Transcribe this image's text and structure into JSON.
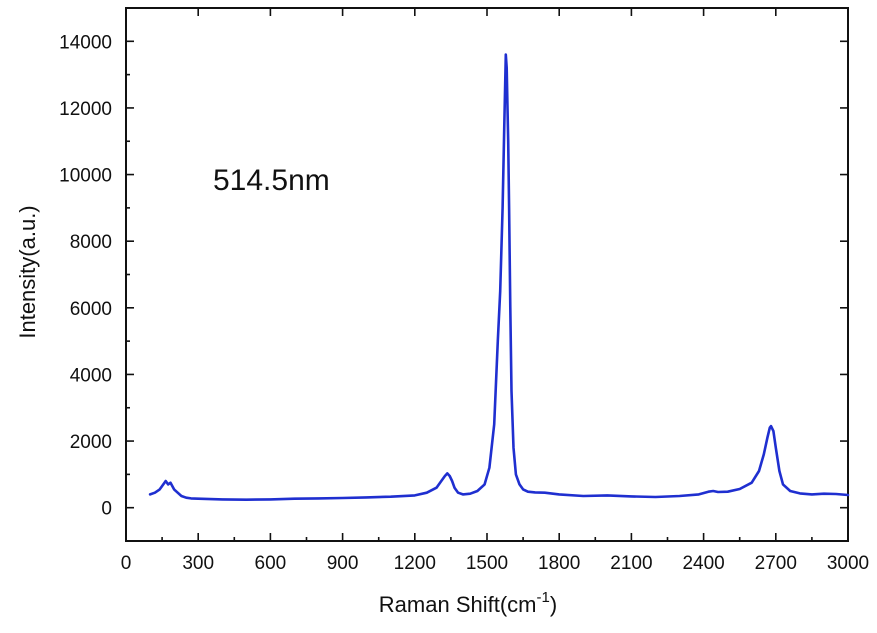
{
  "chart_data": {
    "type": "line",
    "title": "",
    "annotation": "514.5nm",
    "xlabel": "Raman Shift(cm",
    "xlabel_sup": "-1",
    "xlabel_close": ")",
    "ylabel": "Intensity(a.u.)",
    "xlim": [
      0,
      3000
    ],
    "ylim": [
      -1000,
      15000
    ],
    "x_ticks": [
      0,
      300,
      600,
      900,
      1200,
      1500,
      1800,
      2100,
      2400,
      2700,
      3000
    ],
    "x_tick_labels": [
      "0",
      "300",
      "600",
      "900",
      "1200",
      "1500",
      "1800",
      "2100",
      "2400",
      "2700",
      "3000"
    ],
    "y_ticks": [
      0,
      2000,
      4000,
      6000,
      8000,
      10000,
      12000,
      14000
    ],
    "y_tick_labels": [
      "0",
      "2000",
      "4000",
      "6000",
      "8000",
      "10000",
      "12000",
      "14000"
    ],
    "grid": false,
    "legend": "none",
    "series": [
      {
        "color": "#1f2fd0",
        "x": [
          100,
          120,
          140,
          155,
          165,
          175,
          185,
          200,
          215,
          230,
          250,
          270,
          300,
          400,
          500,
          600,
          700,
          800,
          900,
          1000,
          1100,
          1200,
          1250,
          1290,
          1310,
          1325,
          1335,
          1345,
          1355,
          1365,
          1380,
          1400,
          1430,
          1460,
          1490,
          1510,
          1530,
          1545,
          1555,
          1565,
          1572,
          1578,
          1582,
          1585,
          1588,
          1592,
          1597,
          1602,
          1610,
          1620,
          1635,
          1650,
          1670,
          1700,
          1740,
          1800,
          1900,
          2000,
          2100,
          2200,
          2300,
          2380,
          2420,
          2440,
          2460,
          2500,
          2550,
          2600,
          2630,
          2650,
          2665,
          2675,
          2680,
          2690,
          2700,
          2715,
          2730,
          2760,
          2800,
          2850,
          2900,
          2950,
          3000
        ],
        "y": [
          400,
          450,
          550,
          700,
          800,
          700,
          750,
          550,
          450,
          350,
          300,
          280,
          270,
          250,
          240,
          250,
          270,
          280,
          290,
          310,
          330,
          370,
          450,
          600,
          800,
          950,
          1030,
          950,
          800,
          600,
          450,
          400,
          420,
          500,
          700,
          1200,
          2500,
          5000,
          6500,
          9000,
          11500,
          13600,
          13200,
          12000,
          11000,
          9000,
          6000,
          3500,
          1800,
          1000,
          700,
          550,
          480,
          460,
          450,
          400,
          350,
          370,
          340,
          320,
          350,
          400,
          480,
          500,
          470,
          480,
          560,
          750,
          1100,
          1600,
          2100,
          2400,
          2450,
          2300,
          1800,
          1100,
          700,
          500,
          430,
          400,
          420,
          410,
          380
        ]
      }
    ]
  }
}
